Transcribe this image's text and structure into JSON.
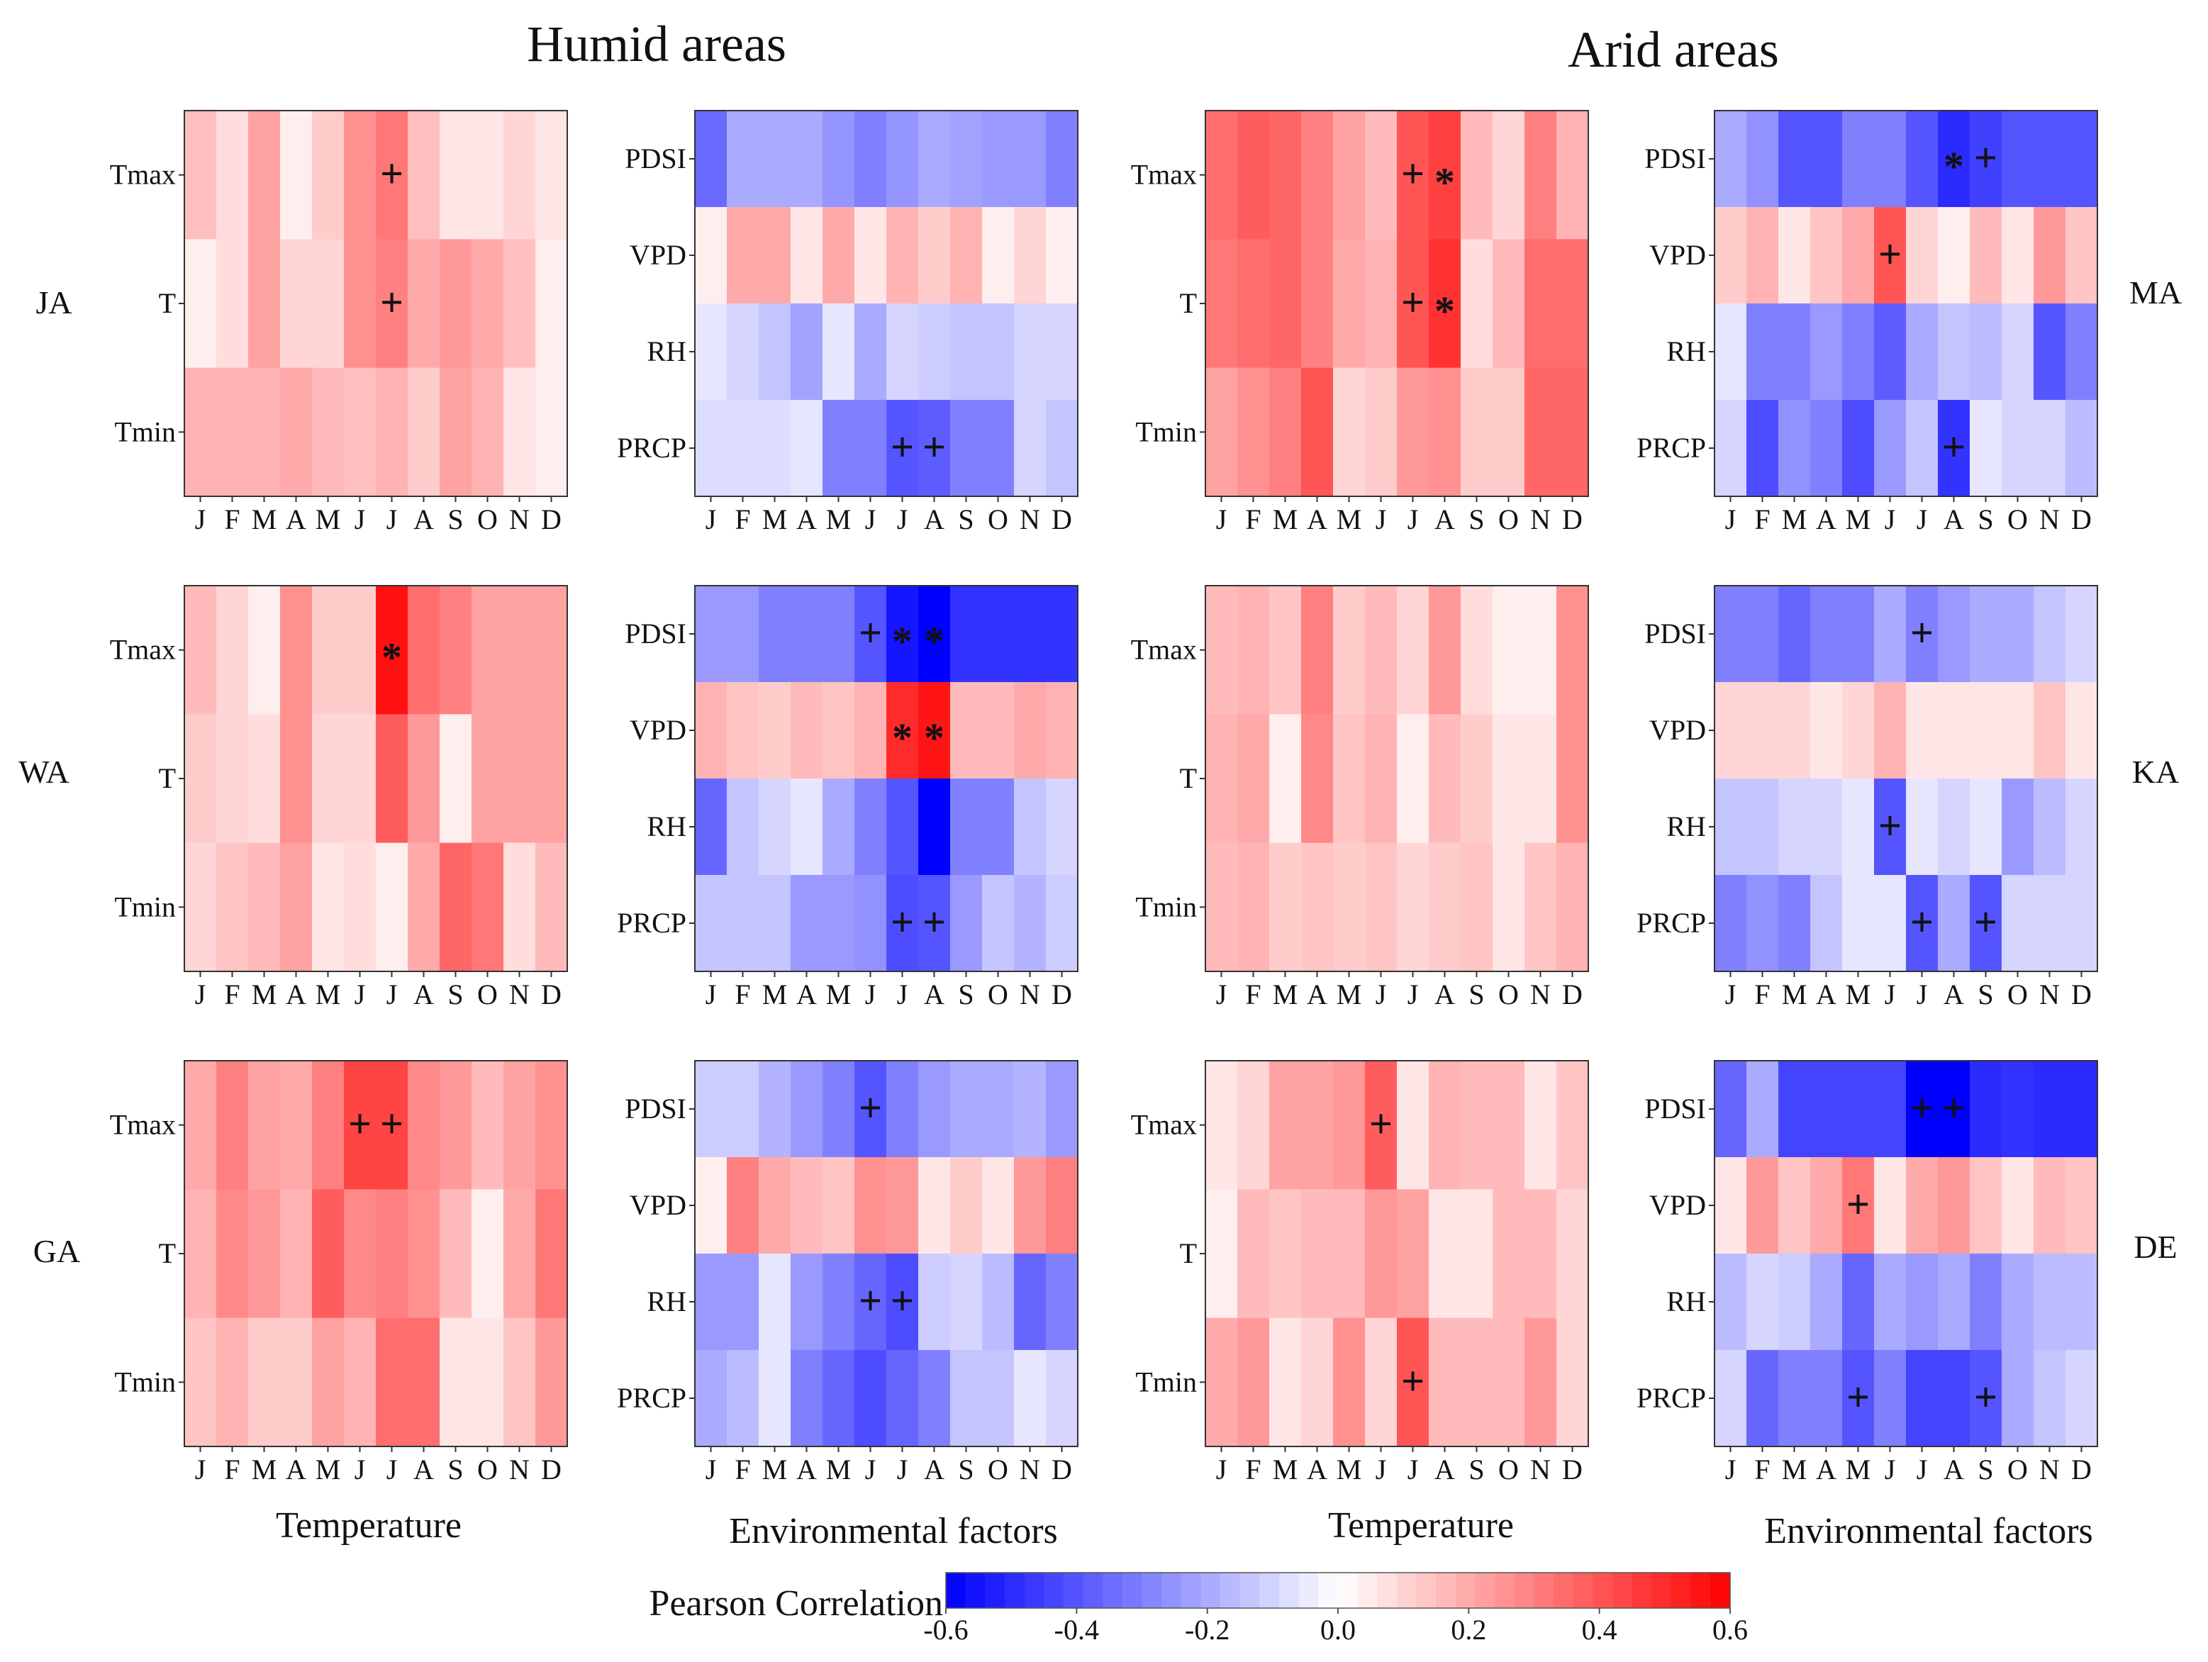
{
  "chart_data": {
    "type": "heatmap",
    "group_titles": [
      "Humid areas",
      "Arid areas"
    ],
    "column_xlabels": [
      "Temperature",
      "Environmental factors",
      "Temperature",
      "Environmental factors"
    ],
    "months": [
      "J",
      "F",
      "M",
      "A",
      "M",
      "J",
      "J",
      "A",
      "S",
      "O",
      "N",
      "D"
    ],
    "colorbar": {
      "title": "Pearson Correlation",
      "min": -0.6,
      "max": 0.6,
      "ticks": [
        "-0.6",
        "-0.4",
        "-0.2",
        "0.0",
        "0.2",
        "0.4",
        "0.6"
      ],
      "low_color": "#0000ff",
      "mid_color": "#ffffff",
      "high_color": "#ff0000"
    },
    "panels": [
      {
        "id": "JA-temp",
        "row_label": "JA",
        "vars": [
          "Tmax",
          "T",
          "Tmin"
        ],
        "values": [
          [
            0.15,
            0.08,
            0.22,
            0.04,
            0.12,
            0.26,
            0.32,
            0.15,
            0.06,
            0.06,
            0.1,
            0.06
          ],
          [
            0.04,
            0.08,
            0.22,
            0.1,
            0.1,
            0.26,
            0.3,
            0.2,
            0.24,
            0.2,
            0.15,
            0.04
          ],
          [
            0.18,
            0.18,
            0.18,
            0.2,
            0.16,
            0.15,
            0.18,
            0.12,
            0.22,
            0.18,
            0.06,
            0.04
          ]
        ],
        "marks": [
          {
            "row": 0,
            "col": 6,
            "sym": "+"
          },
          {
            "row": 1,
            "col": 6,
            "sym": "+"
          }
        ]
      },
      {
        "id": "JA-env",
        "row_label": "JA",
        "vars": [
          "PDSI",
          "VPD",
          "RH",
          "PRCP"
        ],
        "values": [
          [
            -0.35,
            -0.2,
            -0.2,
            -0.2,
            -0.25,
            -0.3,
            -0.25,
            -0.2,
            -0.22,
            -0.24,
            -0.24,
            -0.3
          ],
          [
            0.04,
            0.2,
            0.2,
            0.06,
            0.2,
            0.06,
            0.18,
            0.12,
            0.18,
            0.04,
            0.1,
            0.04
          ],
          [
            -0.06,
            -0.1,
            -0.14,
            -0.22,
            -0.06,
            -0.2,
            -0.1,
            -0.12,
            -0.14,
            -0.14,
            -0.1,
            -0.1
          ],
          [
            -0.08,
            -0.08,
            -0.08,
            -0.06,
            -0.3,
            -0.3,
            -0.4,
            -0.38,
            -0.3,
            -0.3,
            -0.1,
            -0.14
          ]
        ],
        "marks": [
          {
            "row": 3,
            "col": 6,
            "sym": "+"
          },
          {
            "row": 3,
            "col": 7,
            "sym": "+"
          }
        ]
      },
      {
        "id": "MA-temp",
        "row_label": "MA",
        "vars": [
          "Tmax",
          "T",
          "Tmin"
        ],
        "values": [
          [
            0.34,
            0.38,
            0.36,
            0.3,
            0.22,
            0.16,
            0.4,
            0.45,
            0.16,
            0.1,
            0.3,
            0.18
          ],
          [
            0.32,
            0.34,
            0.36,
            0.3,
            0.2,
            0.18,
            0.4,
            0.48,
            0.08,
            0.16,
            0.34,
            0.34
          ],
          [
            0.22,
            0.26,
            0.3,
            0.4,
            0.1,
            0.12,
            0.24,
            0.26,
            0.12,
            0.12,
            0.36,
            0.36
          ]
        ],
        "marks": [
          {
            "row": 0,
            "col": 6,
            "sym": "+"
          },
          {
            "row": 0,
            "col": 7,
            "sym": "*"
          },
          {
            "row": 1,
            "col": 6,
            "sym": "+"
          },
          {
            "row": 1,
            "col": 7,
            "sym": "*"
          }
        ]
      },
      {
        "id": "MA-env",
        "row_label": "MA",
        "vars": [
          "PDSI",
          "VPD",
          "RH",
          "PRCP"
        ],
        "values": [
          [
            -0.2,
            -0.26,
            -0.4,
            -0.4,
            -0.3,
            -0.3,
            -0.4,
            -0.5,
            -0.45,
            -0.4,
            -0.4,
            -0.4
          ],
          [
            0.12,
            0.18,
            0.06,
            0.14,
            0.2,
            0.4,
            0.1,
            0.04,
            0.16,
            0.06,
            0.24,
            0.14
          ],
          [
            -0.06,
            -0.3,
            -0.3,
            -0.24,
            -0.3,
            -0.38,
            -0.2,
            -0.14,
            -0.16,
            -0.1,
            -0.4,
            -0.3
          ],
          [
            -0.1,
            -0.42,
            -0.26,
            -0.3,
            -0.42,
            -0.24,
            -0.14,
            -0.48,
            -0.06,
            -0.1,
            -0.1,
            -0.16
          ]
        ],
        "marks": [
          {
            "row": 0,
            "col": 7,
            "sym": "*"
          },
          {
            "row": 0,
            "col": 8,
            "sym": "+"
          },
          {
            "row": 1,
            "col": 5,
            "sym": "+"
          },
          {
            "row": 3,
            "col": 7,
            "sym": "+"
          }
        ]
      },
      {
        "id": "WA-temp",
        "row_label": "WA",
        "vars": [
          "Tmax",
          "T",
          "Tmin"
        ],
        "values": [
          [
            0.16,
            0.1,
            0.04,
            0.26,
            0.12,
            0.12,
            0.56,
            0.34,
            0.3,
            0.22,
            0.22,
            0.22
          ],
          [
            0.12,
            0.1,
            0.08,
            0.26,
            0.1,
            0.1,
            0.38,
            0.24,
            0.04,
            0.22,
            0.22,
            0.22
          ],
          [
            0.1,
            0.14,
            0.16,
            0.22,
            0.06,
            0.08,
            0.04,
            0.2,
            0.36,
            0.32,
            0.08,
            0.16
          ]
        ],
        "marks": [
          {
            "row": 0,
            "col": 6,
            "sym": "*"
          }
        ]
      },
      {
        "id": "WA-env",
        "row_label": "WA",
        "vars": [
          "PDSI",
          "VPD",
          "RH",
          "PRCP"
        ],
        "values": [
          [
            -0.24,
            -0.24,
            -0.3,
            -0.3,
            -0.3,
            -0.4,
            -0.55,
            -0.6,
            -0.48,
            -0.48,
            -0.48,
            -0.48
          ],
          [
            0.18,
            0.14,
            0.12,
            0.16,
            0.14,
            0.18,
            0.5,
            0.55,
            0.16,
            0.16,
            0.2,
            0.18
          ],
          [
            -0.36,
            -0.14,
            -0.1,
            -0.06,
            -0.2,
            -0.3,
            -0.4,
            -0.6,
            -0.3,
            -0.3,
            -0.14,
            -0.1
          ],
          [
            -0.14,
            -0.14,
            -0.14,
            -0.24,
            -0.24,
            -0.26,
            -0.42,
            -0.4,
            -0.24,
            -0.14,
            -0.18,
            -0.12
          ]
        ],
        "marks": [
          {
            "row": 0,
            "col": 5,
            "sym": "+"
          },
          {
            "row": 0,
            "col": 6,
            "sym": "*"
          },
          {
            "row": 0,
            "col": 7,
            "sym": "*"
          },
          {
            "row": 1,
            "col": 6,
            "sym": "*"
          },
          {
            "row": 1,
            "col": 7,
            "sym": "*"
          },
          {
            "row": 3,
            "col": 6,
            "sym": "+"
          },
          {
            "row": 3,
            "col": 7,
            "sym": "+"
          }
        ]
      },
      {
        "id": "KA-temp",
        "row_label": "KA",
        "vars": [
          "Tmax",
          "T",
          "Tmin"
        ],
        "values": [
          [
            0.16,
            0.18,
            0.14,
            0.3,
            0.12,
            0.16,
            0.1,
            0.24,
            0.08,
            0.04,
            0.04,
            0.26
          ],
          [
            0.18,
            0.2,
            0.04,
            0.28,
            0.14,
            0.18,
            0.04,
            0.16,
            0.12,
            0.06,
            0.06,
            0.26
          ],
          [
            0.16,
            0.18,
            0.12,
            0.14,
            0.12,
            0.14,
            0.1,
            0.12,
            0.14,
            0.06,
            0.14,
            0.18
          ]
        ],
        "marks": []
      },
      {
        "id": "KA-env",
        "row_label": "KA",
        "vars": [
          "PDSI",
          "VPD",
          "RH",
          "PRCP"
        ],
        "values": [
          [
            -0.3,
            -0.3,
            -0.36,
            -0.3,
            -0.3,
            -0.2,
            -0.3,
            -0.24,
            -0.2,
            -0.2,
            -0.14,
            -0.1
          ],
          [
            0.1,
            0.1,
            0.1,
            0.06,
            0.1,
            0.18,
            0.06,
            0.06,
            0.06,
            0.06,
            0.14,
            0.06
          ],
          [
            -0.14,
            -0.14,
            -0.1,
            -0.1,
            -0.06,
            -0.4,
            -0.06,
            -0.1,
            -0.06,
            -0.24,
            -0.16,
            -0.1
          ],
          [
            -0.3,
            -0.26,
            -0.3,
            -0.14,
            -0.06,
            -0.06,
            -0.4,
            -0.2,
            -0.4,
            -0.1,
            -0.1,
            -0.1
          ]
        ],
        "marks": [
          {
            "row": 0,
            "col": 6,
            "sym": "+"
          },
          {
            "row": 2,
            "col": 5,
            "sym": "+"
          },
          {
            "row": 3,
            "col": 6,
            "sym": "+"
          },
          {
            "row": 3,
            "col": 8,
            "sym": "+"
          }
        ]
      },
      {
        "id": "GA-temp",
        "row_label": "GA",
        "vars": [
          "Tmax",
          "T",
          "Tmin"
        ],
        "values": [
          [
            0.2,
            0.3,
            0.22,
            0.2,
            0.3,
            0.44,
            0.44,
            0.28,
            0.24,
            0.16,
            0.22,
            0.26
          ],
          [
            0.18,
            0.28,
            0.24,
            0.18,
            0.38,
            0.28,
            0.3,
            0.26,
            0.16,
            0.04,
            0.2,
            0.32
          ],
          [
            0.14,
            0.18,
            0.12,
            0.12,
            0.22,
            0.18,
            0.34,
            0.34,
            0.06,
            0.06,
            0.14,
            0.24
          ]
        ],
        "marks": [
          {
            "row": 0,
            "col": 5,
            "sym": "+"
          },
          {
            "row": 0,
            "col": 6,
            "sym": "+"
          }
        ]
      },
      {
        "id": "GA-env",
        "row_label": "GA",
        "vars": [
          "PDSI",
          "VPD",
          "RH",
          "PRCP"
        ],
        "values": [
          [
            -0.12,
            -0.12,
            -0.18,
            -0.24,
            -0.3,
            -0.4,
            -0.3,
            -0.24,
            -0.2,
            -0.2,
            -0.18,
            -0.24
          ],
          [
            0.04,
            0.3,
            0.2,
            0.16,
            0.14,
            0.26,
            0.24,
            0.06,
            0.12,
            0.06,
            0.24,
            0.3
          ],
          [
            -0.24,
            -0.24,
            -0.06,
            -0.24,
            -0.3,
            -0.36,
            -0.42,
            -0.12,
            -0.1,
            -0.16,
            -0.36,
            -0.3
          ],
          [
            -0.2,
            -0.16,
            -0.06,
            -0.3,
            -0.36,
            -0.42,
            -0.36,
            -0.3,
            -0.14,
            -0.14,
            -0.06,
            -0.1
          ]
        ],
        "marks": [
          {
            "row": 0,
            "col": 5,
            "sym": "+"
          },
          {
            "row": 2,
            "col": 5,
            "sym": "+"
          },
          {
            "row": 2,
            "col": 6,
            "sym": "+"
          }
        ]
      },
      {
        "id": "DE-temp",
        "row_label": "DE",
        "vars": [
          "Tmax",
          "T",
          "Tmin"
        ],
        "values": [
          [
            0.06,
            0.1,
            0.22,
            0.22,
            0.24,
            0.38,
            0.06,
            0.18,
            0.16,
            0.16,
            0.06,
            0.14
          ],
          [
            0.04,
            0.16,
            0.14,
            0.16,
            0.16,
            0.24,
            0.22,
            0.06,
            0.06,
            0.16,
            0.16,
            0.1
          ],
          [
            0.2,
            0.24,
            0.06,
            0.1,
            0.26,
            0.1,
            0.4,
            0.16,
            0.16,
            0.16,
            0.24,
            0.1
          ]
        ],
        "marks": [
          {
            "row": 0,
            "col": 5,
            "sym": "+"
          },
          {
            "row": 2,
            "col": 6,
            "sym": "+"
          }
        ]
      },
      {
        "id": "DE-env",
        "row_label": "DE",
        "vars": [
          "PDSI",
          "VPD",
          "RH",
          "PRCP"
        ],
        "values": [
          [
            -0.36,
            -0.2,
            -0.44,
            -0.44,
            -0.44,
            -0.44,
            -0.64,
            -0.6,
            -0.5,
            -0.48,
            -0.5,
            -0.5
          ],
          [
            0.06,
            0.24,
            0.14,
            0.2,
            0.32,
            0.06,
            0.2,
            0.24,
            0.14,
            0.06,
            0.16,
            0.14
          ],
          [
            -0.16,
            -0.1,
            -0.12,
            -0.2,
            -0.36,
            -0.2,
            -0.24,
            -0.2,
            -0.3,
            -0.2,
            -0.16,
            -0.16
          ],
          [
            -0.1,
            -0.36,
            -0.3,
            -0.3,
            -0.4,
            -0.3,
            -0.44,
            -0.44,
            -0.4,
            -0.2,
            -0.14,
            -0.1
          ]
        ],
        "marks": [
          {
            "row": 0,
            "col": 6,
            "sym": "+"
          },
          {
            "row": 0,
            "col": 7,
            "sym": "+"
          },
          {
            "row": 1,
            "col": 4,
            "sym": "+"
          },
          {
            "row": 3,
            "col": 4,
            "sym": "+"
          },
          {
            "row": 3,
            "col": 8,
            "sym": "+"
          }
        ]
      }
    ]
  }
}
